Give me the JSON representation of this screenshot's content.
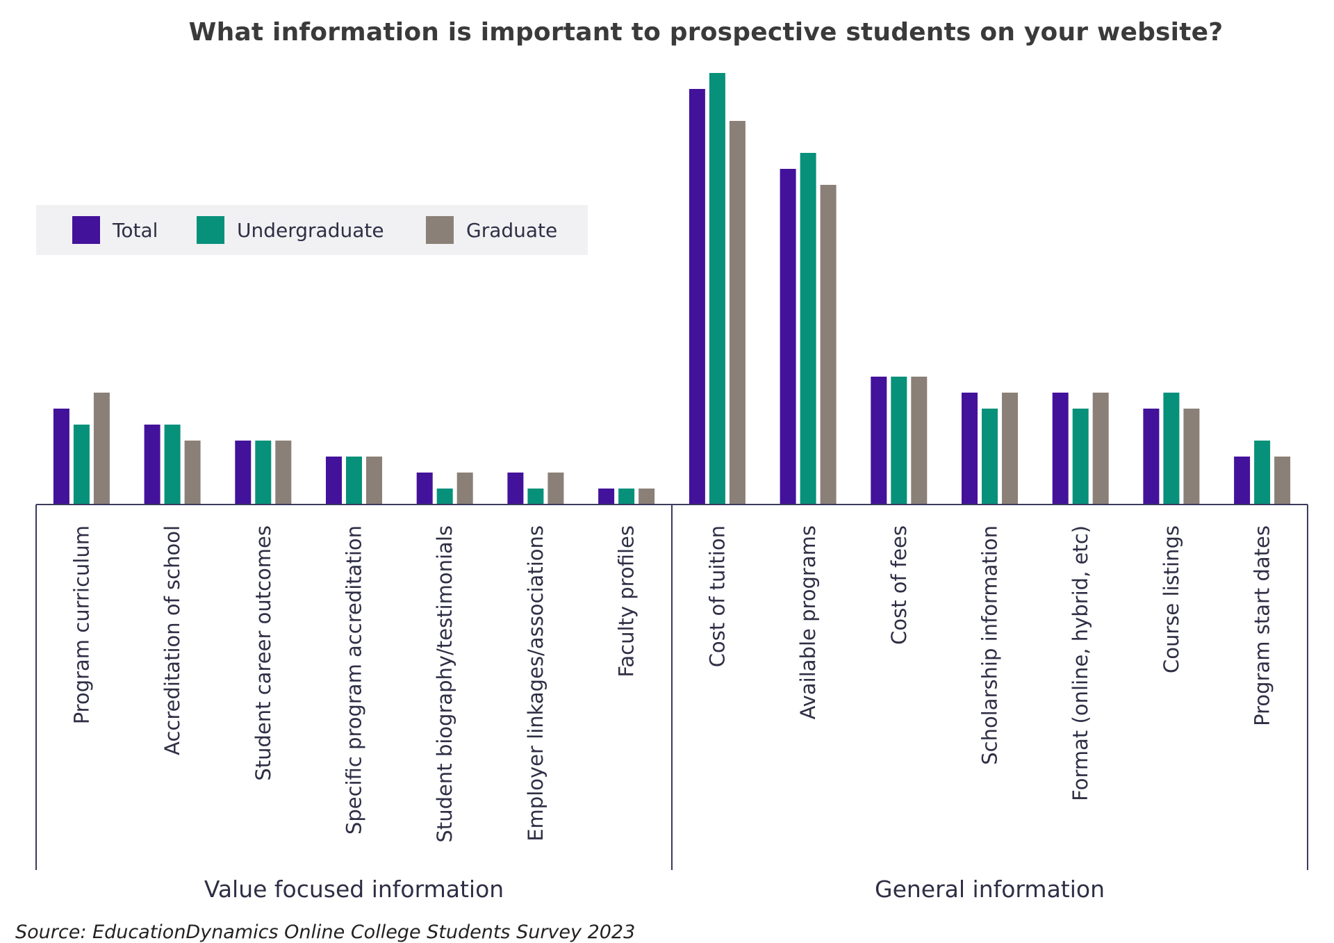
{
  "chart_data": {
    "type": "bar",
    "title": "What information is important to prospective students on your website?",
    "xlabel": "",
    "ylabel": "",
    "ylim": [
      0,
      28
    ],
    "grid": false,
    "legend_position": "top-left",
    "categories": [
      "Program curriculum",
      "Accreditation of school",
      "Student career outcomes",
      "Specific program accreditation",
      "Student biography/testimonials",
      "Employer linkages/associations",
      "Faculty profiles",
      "Cost of tuition",
      "Available programs",
      "Cost of fees",
      "Scholarship information",
      "Format (online, hybrid, etc)",
      "Course listings",
      "Program start dates"
    ],
    "series": [
      {
        "name": "Total",
        "color": "#43129a",
        "values": [
          6,
          5,
          4,
          3,
          2,
          2,
          1,
          26,
          21,
          8,
          7,
          7,
          6,
          3
        ]
      },
      {
        "name": "Undergraduate",
        "color": "#07917a",
        "values": [
          5,
          5,
          4,
          3,
          1,
          1,
          1,
          27,
          22,
          8,
          6,
          6,
          7,
          4
        ]
      },
      {
        "name": "Graduate",
        "color": "#8a8077",
        "values": [
          7,
          4,
          4,
          3,
          2,
          2,
          1,
          24,
          20,
          8,
          7,
          7,
          6,
          3
        ]
      }
    ],
    "groups": [
      {
        "label": "Value focused information",
        "category_count": 7
      },
      {
        "label": "General information",
        "category_count": 7
      }
    ]
  },
  "source": "Source: EducationDynamics Online College Students Survey 2023"
}
